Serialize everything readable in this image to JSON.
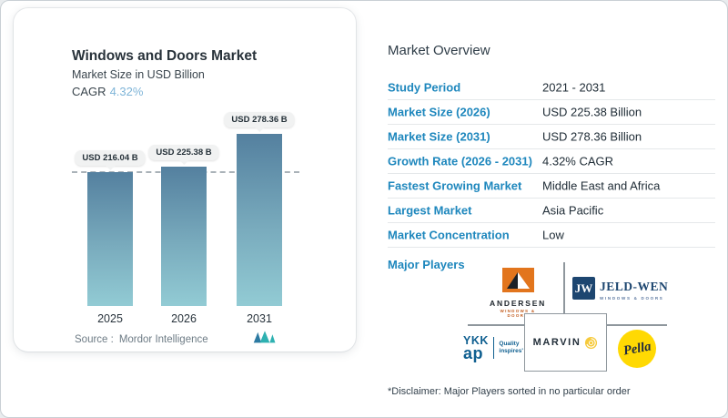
{
  "card": {
    "title": "Windows and Doors Market",
    "subtitle": "Market Size in USD Billion",
    "cagr_label": "CAGR",
    "cagr_value": "4.32%",
    "source_label": "Source :",
    "source_value": "Mordor Intelligence"
  },
  "chart_data": {
    "type": "bar",
    "title": "Windows and Doors Market",
    "ylabel": "Market Size in USD Billion",
    "categories": [
      "2025",
      "2026",
      "2031"
    ],
    "values": [
      216.04,
      225.38,
      278.36
    ],
    "bar_labels": [
      "USD 216.04 B",
      "USD 225.38 B",
      "USD 278.36 B"
    ],
    "reference_line": {
      "value": 216.04,
      "style": "dashed"
    },
    "ylim": [
      0,
      300
    ],
    "grid": false,
    "legend": "none"
  },
  "overview": {
    "heading": "Market Overview",
    "rows": [
      {
        "label": "Study Period",
        "value": "2021 - 2031"
      },
      {
        "label": "Market Size (2026)",
        "value": "USD 225.38 Billion"
      },
      {
        "label": "Market Size (2031)",
        "value": "USD 278.36 Billion"
      },
      {
        "label": "Growth Rate (2026 - 2031)",
        "value": "4.32% CAGR"
      },
      {
        "label": "Fastest Growing Market",
        "value": "Middle East and Africa"
      },
      {
        "label": "Largest Market",
        "value": "Asia Pacific"
      },
      {
        "label": "Market Concentration",
        "value": "Low"
      }
    ],
    "major_players_label": "Major Players",
    "players": {
      "andersen": {
        "name": "ANDERSEN",
        "sub": "WINDOWS & DOORS"
      },
      "jeldwen": {
        "monogram": "JW",
        "name": "JELD-WEN",
        "sub": "WINDOWS & DOORS"
      },
      "ykkap": {
        "line1": "YKK",
        "line2": "ap",
        "tag1": "Quality",
        "tag2": "inspires'"
      },
      "marvin": {
        "name": "MARVIN"
      },
      "pella": {
        "name": "Pella"
      }
    },
    "disclaimer": "*Disclaimer: Major Players sorted in no particular order"
  },
  "colors": {
    "accent_blue": "#1e87bd",
    "cagr_accent": "#7fb5d8",
    "bar_top": "#54809f",
    "bar_bottom": "#92cbd4",
    "andersen_orange": "#e2751d",
    "jeldwen_navy": "#1d4670",
    "ykk_blue": "#0f5f90",
    "pella_yellow": "#ffd903",
    "marvin_rose": "#f6ca3c"
  }
}
